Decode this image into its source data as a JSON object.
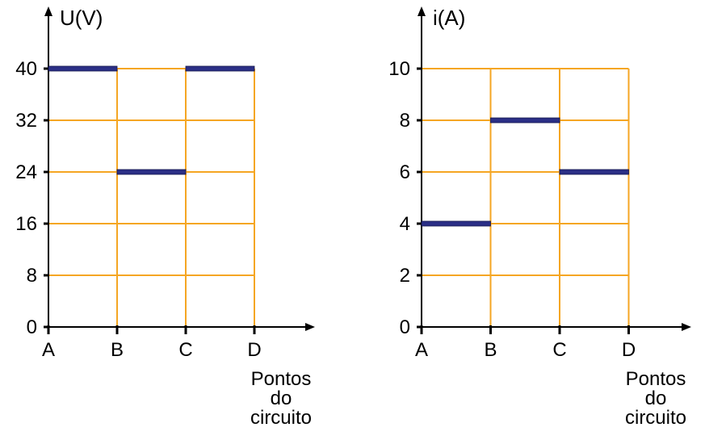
{
  "colors": {
    "grid": "#f5a623",
    "bar": "#2b2f86",
    "axis": "#000000",
    "background": "#ffffff"
  },
  "chart_data": [
    {
      "type": "line",
      "ylabel": "U(V)",
      "xlabel": "",
      "x_title_lines": [
        "Pontos",
        "do",
        "circuito"
      ],
      "categories": [
        "A",
        "B",
        "C",
        "D"
      ],
      "yticks": [
        "0",
        "8",
        "16",
        "24",
        "32",
        "40"
      ],
      "ylim": [
        0,
        40
      ],
      "grid": true,
      "segments": [
        {
          "from": "A",
          "to": "B",
          "value": 40
        },
        {
          "from": "B",
          "to": "C",
          "value": 24
        },
        {
          "from": "C",
          "to": "D",
          "value": 40
        }
      ]
    },
    {
      "type": "line",
      "ylabel": "i(A)",
      "xlabel": "",
      "x_title_lines": [
        "Pontos",
        "do",
        "circuito"
      ],
      "categories": [
        "A",
        "B",
        "C",
        "D"
      ],
      "yticks": [
        "0",
        "2",
        "4",
        "6",
        "8",
        "10"
      ],
      "ylim": [
        0,
        10
      ],
      "grid": true,
      "segments": [
        {
          "from": "A",
          "to": "B",
          "value": 4
        },
        {
          "from": "B",
          "to": "C",
          "value": 8
        },
        {
          "from": "C",
          "to": "D",
          "value": 6
        }
      ]
    }
  ]
}
